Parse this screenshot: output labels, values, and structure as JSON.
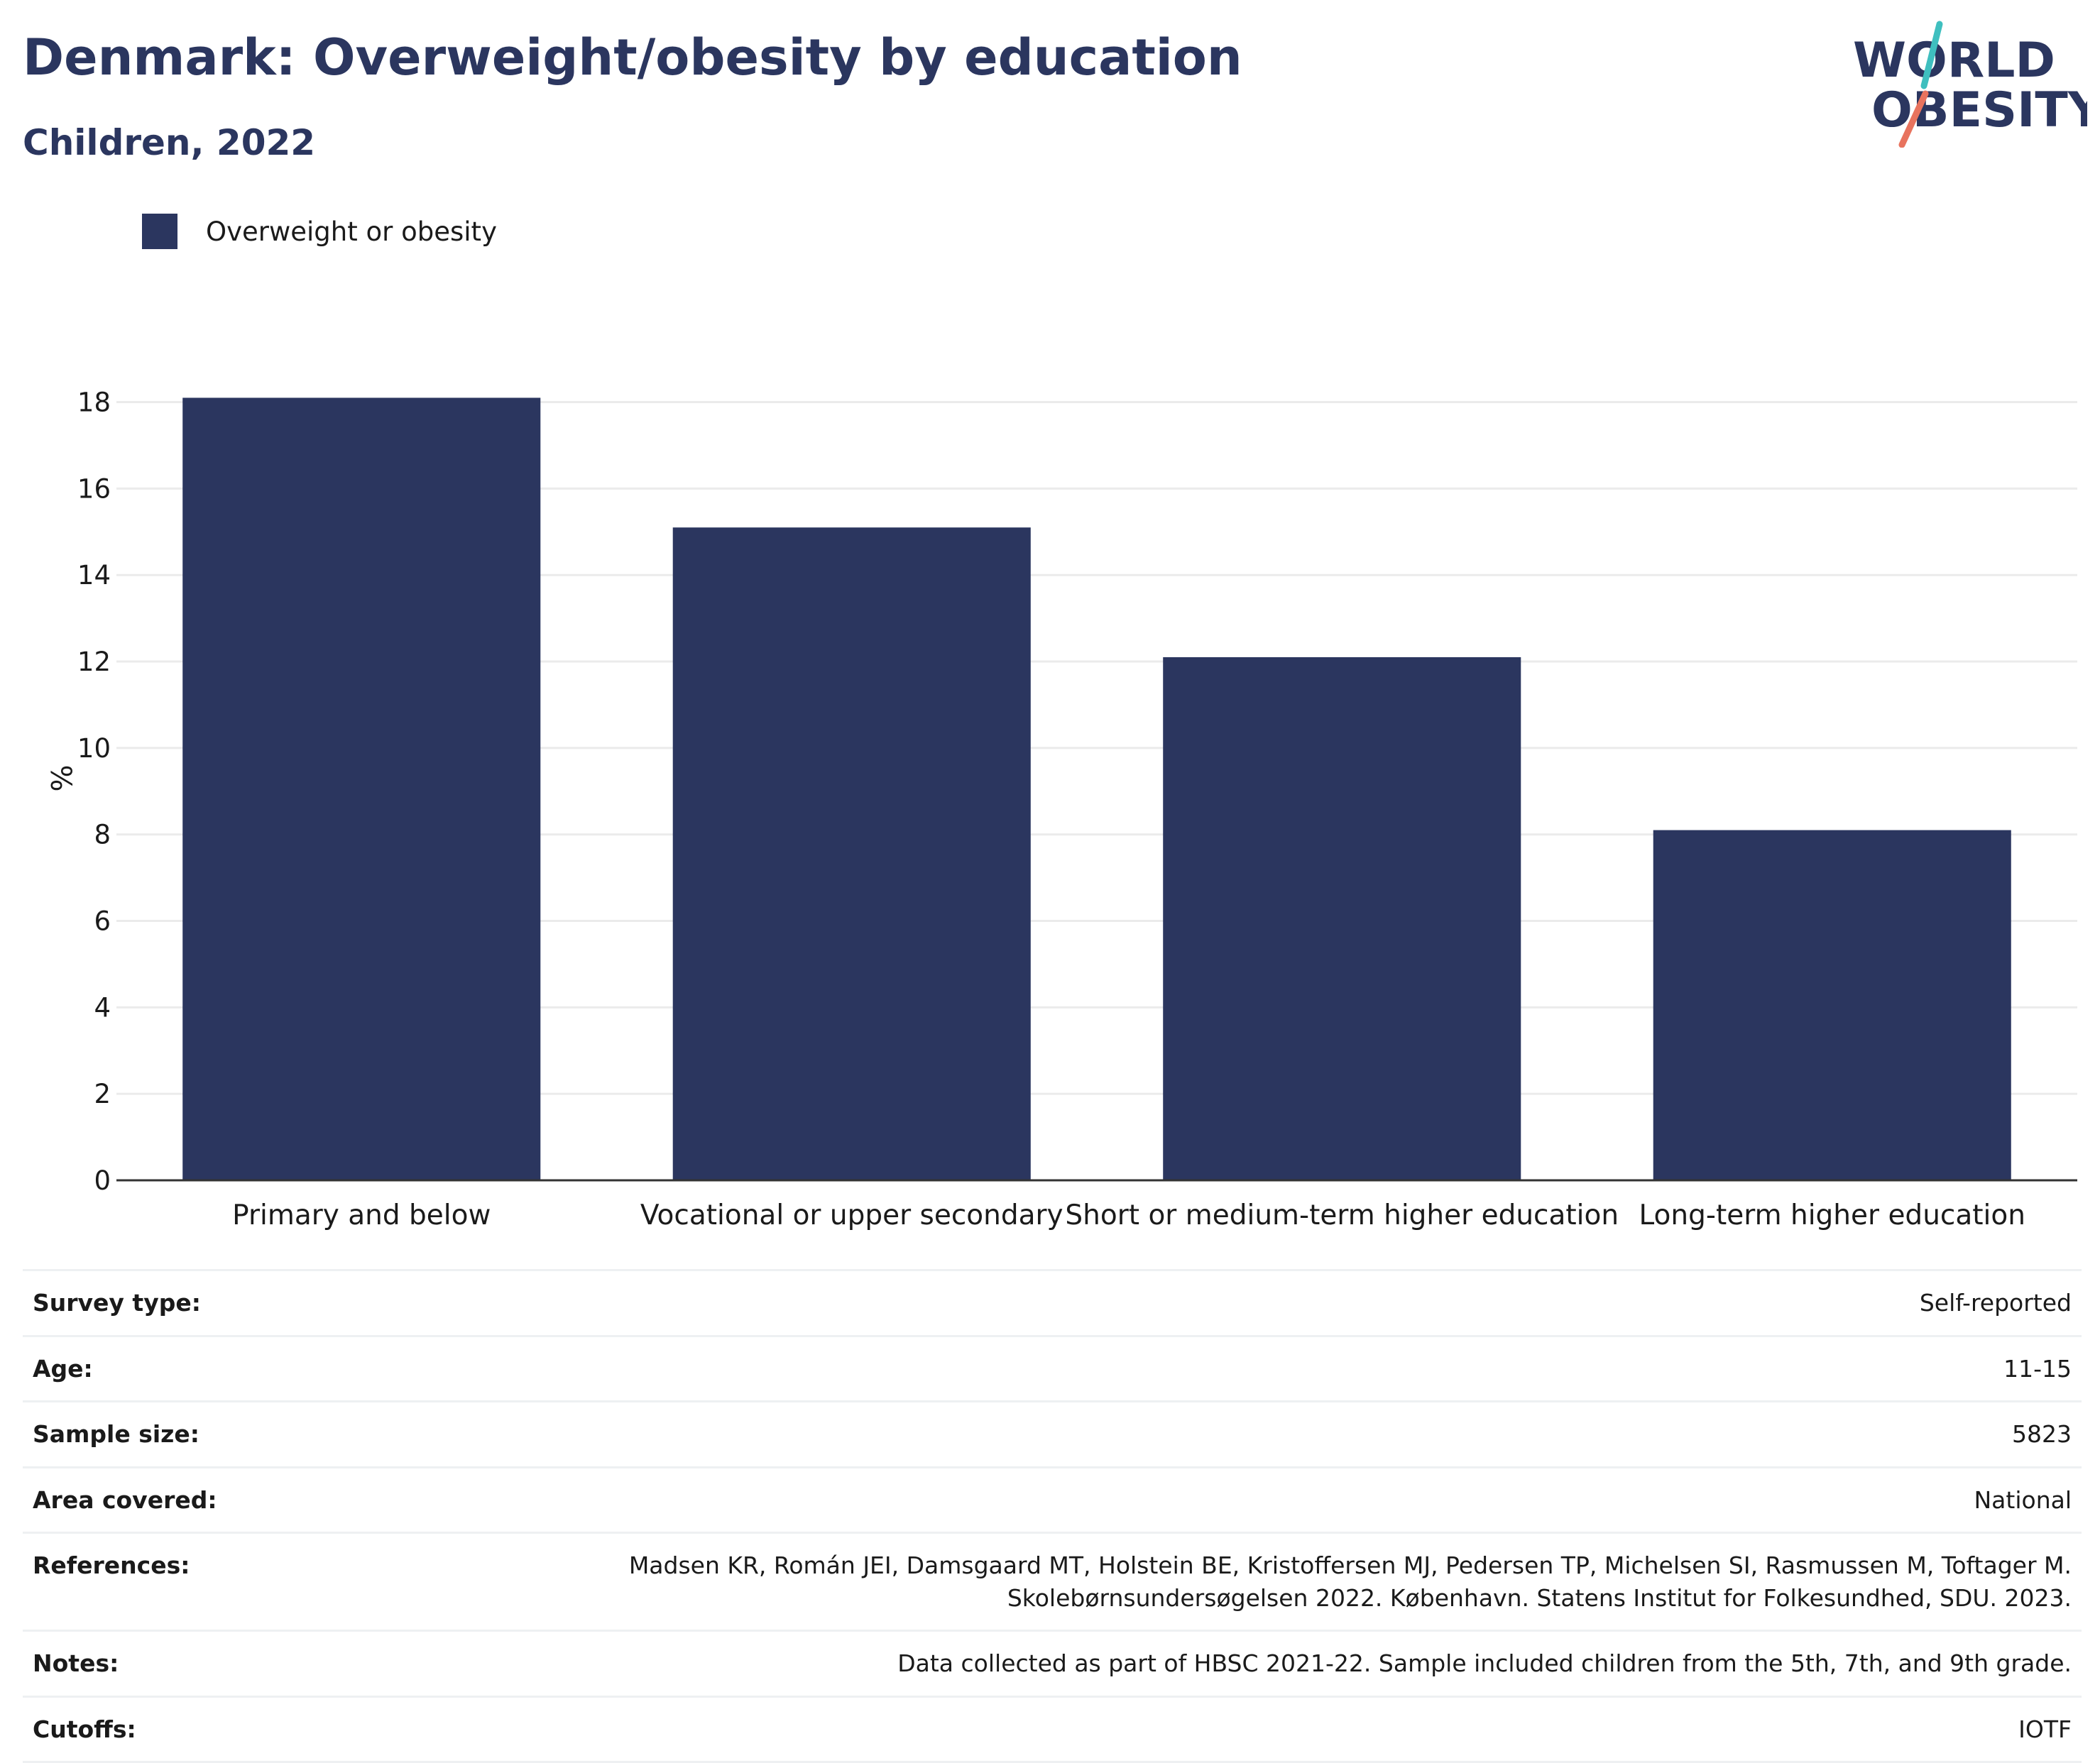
{
  "header": {
    "title": "Denmark: Overweight/obesity by education",
    "subtitle": "Children, 2022"
  },
  "logo": {
    "line1": "WORLD",
    "line2": "OBESITY"
  },
  "colors": {
    "bar": "#2b365f",
    "logo_teal": "#3fbfbf",
    "logo_coral": "#e8735e",
    "grid": "#ebebeb"
  },
  "legend": {
    "label": "Overweight or obesity"
  },
  "chart_data": {
    "type": "bar",
    "categories": [
      "Primary and below",
      "Vocational or upper secondary",
      "Short or medium-term higher education",
      "Long-term higher education"
    ],
    "series": [
      {
        "name": "Overweight or obesity",
        "values": [
          18.1,
          15.1,
          12.1,
          8.1
        ]
      }
    ],
    "ylabel": "%",
    "yticks": [
      0,
      2,
      4,
      6,
      8,
      10,
      12,
      14,
      16,
      18
    ],
    "ylim": [
      0,
      18.6
    ],
    "grid": true,
    "legend_position": "top-left"
  },
  "details": [
    {
      "key": "Survey type:",
      "value": "Self-reported"
    },
    {
      "key": "Age:",
      "value": "11-15"
    },
    {
      "key": "Sample size:",
      "value": "5823"
    },
    {
      "key": "Area covered:",
      "value": "National"
    },
    {
      "key": "References:",
      "value": "Madsen KR, Román JEI, Damsgaard MT, Holstein BE, Kristoffersen MJ, Pedersen TP, Michelsen SI, Rasmussen M, Toftager M.\nSkolebørnsundersøgelsen 2022. København. Statens Institut for Folkesundhed, SDU. 2023."
    },
    {
      "key": "Notes:",
      "value": "Data collected as part of HBSC 2021-22. Sample included children from the 5th, 7th, and 9th grade."
    },
    {
      "key": "Cutoffs:",
      "value": "IOTF"
    }
  ]
}
